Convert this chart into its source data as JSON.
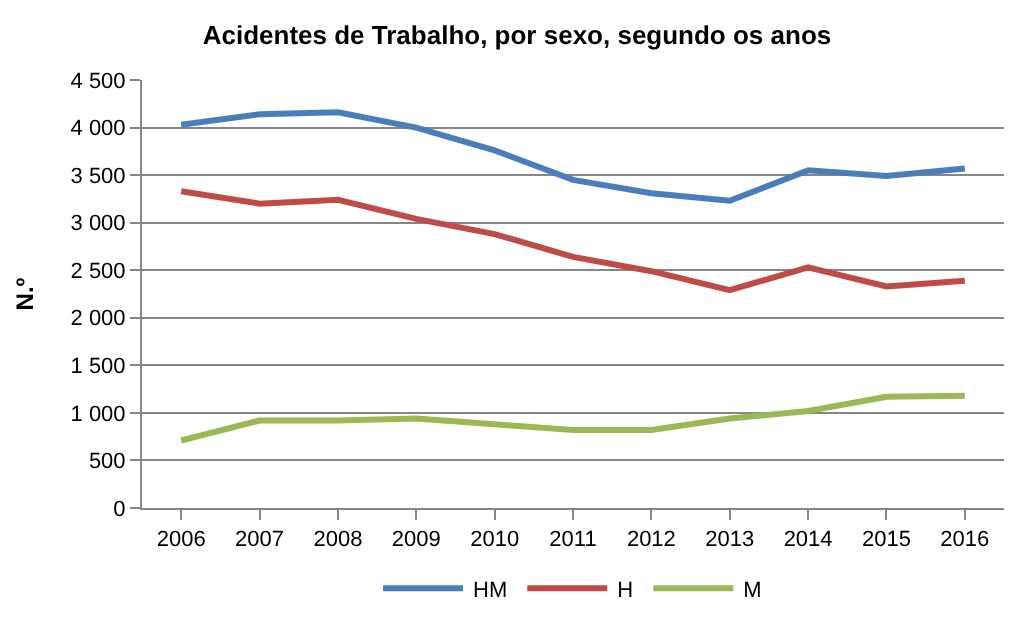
{
  "chart_data": {
    "type": "line",
    "title": "Acidentes de Trabalho, por sexo, segundo os anos",
    "ylabel": "N.º",
    "categories": [
      "2006",
      "2007",
      "2008",
      "2009",
      "2010",
      "2011",
      "2012",
      "2013",
      "2014",
      "2015",
      "2016"
    ],
    "series": [
      {
        "name": "HM",
        "color": "#4a7ebb",
        "values": [
          4030,
          4140,
          4160,
          4000,
          3760,
          3450,
          3310,
          3230,
          3550,
          3490,
          3570
        ]
      },
      {
        "name": "H",
        "color": "#be4b48",
        "values": [
          3330,
          3200,
          3240,
          3040,
          2880,
          2640,
          2490,
          2290,
          2530,
          2330,
          2390
        ]
      },
      {
        "name": "M",
        "color": "#98b954",
        "values": [
          710,
          920,
          920,
          940,
          880,
          820,
          820,
          940,
          1020,
          1170,
          1180
        ]
      }
    ],
    "ylim": [
      0,
      4500
    ],
    "yticks": [
      0,
      500,
      {
        "value": 1000,
        "label": "1 000"
      },
      {
        "value": 1500,
        "label": "1 500"
      },
      {
        "value": 2000,
        "label": "2 000"
      },
      {
        "value": 2500,
        "label": "2 500"
      },
      {
        "value": 3000,
        "label": "3 000"
      },
      {
        "value": 3500,
        "label": "3 500"
      },
      {
        "value": 4000,
        "label": "4 000"
      },
      {
        "value": 4500,
        "label": "4 500"
      }
    ],
    "grid": "y",
    "legend": "bottom",
    "marker": "none",
    "line_style": "solid"
  }
}
